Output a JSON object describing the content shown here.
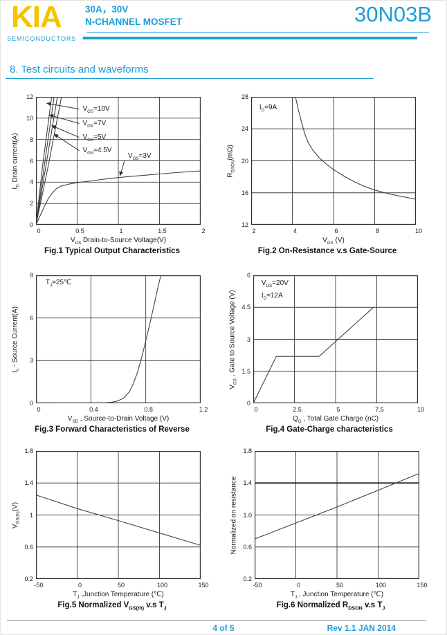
{
  "header": {
    "logo_text": "KIA",
    "logo_sub": "SEMICONDUCTORS",
    "part_line1": "30A，30V",
    "part_line2": "N-CHANNEL MOSFET",
    "part_number": "30N03B"
  },
  "section_title": "8. Test circuits and waveforms",
  "footer": {
    "page_indicator": "4 of 5",
    "revision": "Rev 1.1 JAN 2014"
  },
  "colors": {
    "accent": "#1b9ed6",
    "logo_yellow": "#f5c400",
    "curve": "#404040",
    "grid": "#3c3c3c"
  },
  "chart_data": [
    {
      "id": "fig1",
      "type": "line",
      "caption": "Fig.1 Typical Output Characteristics",
      "xlabel": "V~DS~ Drain-to-Source Voltage(V)",
      "ylabel": "I~D~ Drain current(A)",
      "xlim": [
        0,
        2
      ],
      "ylim": [
        0,
        12
      ],
      "grid": true,
      "xticks": [
        0,
        0.5,
        1,
        1.5,
        2
      ],
      "xtick_labels": [
        "0",
        "0.5",
        "1",
        "1.5",
        "2"
      ],
      "yticks": [
        0,
        2,
        4,
        6,
        8,
        10,
        12
      ],
      "ytick_labels": [
        "0",
        "2",
        "4",
        "6",
        "8",
        "10",
        "12"
      ],
      "series": [
        {
          "name": "V~GS~=10V",
          "points": [
            [
              0,
              0
            ],
            [
              0.08,
              5.5
            ],
            [
              0.19,
              12
            ]
          ]
        },
        {
          "name": "V~GS~=7V",
          "points": [
            [
              0,
              0
            ],
            [
              0.1,
              5.5
            ],
            [
              0.22,
              12
            ]
          ]
        },
        {
          "name": "V~GS~=5V",
          "points": [
            [
              0,
              0
            ],
            [
              0.12,
              5.5
            ],
            [
              0.26,
              12
            ]
          ]
        },
        {
          "name": "V~GS~=4.5V",
          "points": [
            [
              0,
              0
            ],
            [
              0.14,
              5.2
            ],
            [
              0.31,
              12
            ]
          ]
        },
        {
          "name": "V~GS~=3V",
          "points": [
            [
              0,
              0
            ],
            [
              0.05,
              0.85
            ],
            [
              0.1,
              1.7
            ],
            [
              0.15,
              2.45
            ],
            [
              0.2,
              3
            ],
            [
              0.25,
              3.4
            ],
            [
              0.3,
              3.62
            ],
            [
              0.4,
              3.82
            ],
            [
              0.5,
              3.95
            ],
            [
              0.7,
              4.15
            ],
            [
              0.9,
              4.35
            ],
            [
              1.1,
              4.5
            ],
            [
              1.3,
              4.63
            ],
            [
              1.5,
              4.77
            ],
            [
              1.7,
              4.9
            ],
            [
              2,
              5.05
            ]
          ]
        }
      ],
      "callouts": [
        {
          "text": "V~GS~=10V",
          "tx": 0.55,
          "ty": 10.85,
          "px": 0.13,
          "py": 11.4
        },
        {
          "text": "V~GS~=7V",
          "tx": 0.55,
          "ty": 9.5,
          "px": 0.16,
          "py": 10.3
        },
        {
          "text": "V~GS~=5V",
          "tx": 0.55,
          "ty": 8.2,
          "px": 0.19,
          "py": 9.3
        },
        {
          "text": "V~GS~=4.5V",
          "tx": 0.55,
          "ty": 6.95,
          "px": 0.22,
          "py": 8.5
        },
        {
          "text": "V~GS~=3V",
          "tx": 1.1,
          "ty": 6.4,
          "px": 1.02,
          "py": 4.6
        }
      ],
      "annotations": []
    },
    {
      "id": "fig2",
      "type": "line",
      "caption": "Fig.2 On-Resistance v.s Gate-Source",
      "xlabel": "V~GS~ (V)",
      "ylabel": "R~DSON~(mΩ)",
      "xlim": [
        2,
        10
      ],
      "ylim": [
        12,
        28
      ],
      "grid": true,
      "xticks": [
        2,
        4,
        6,
        8,
        10
      ],
      "xtick_labels": [
        "2",
        "4",
        "6",
        "8",
        "10"
      ],
      "yticks": [
        12,
        16,
        20,
        24,
        28
      ],
      "ytick_labels": [
        "12",
        "16",
        "20",
        "24",
        "28"
      ],
      "series": [
        {
          "name": "R~DSON~",
          "points": [
            [
              4.15,
              28
            ],
            [
              4.3,
              26.3
            ],
            [
              4.45,
              24.8
            ],
            [
              4.6,
              23.4
            ],
            [
              4.75,
              22.4
            ],
            [
              5,
              21.3
            ],
            [
              5.3,
              20.4
            ],
            [
              5.6,
              19.7
            ],
            [
              6,
              18.9
            ],
            [
              6.5,
              18.1
            ],
            [
              7,
              17.4
            ],
            [
              7.5,
              16.8
            ],
            [
              8,
              16.35
            ],
            [
              8.5,
              16
            ],
            [
              9,
              15.7
            ],
            [
              9.5,
              15.45
            ],
            [
              10,
              15.2
            ]
          ]
        }
      ],
      "callouts": [],
      "annotations": [
        {
          "text": "I~D~=9A",
          "x": 2.4,
          "y": 27.1
        }
      ]
    },
    {
      "id": "fig3",
      "type": "line",
      "caption": "Fig.3 Forward Characteristics of Reverse",
      "xlabel": "V~SD~ , Source-to-Drain Voltage (V)",
      "ylabel": "I~s~ - Source Current(A)",
      "xlim": [
        0,
        1.2
      ],
      "ylim": [
        0,
        9
      ],
      "grid": true,
      "xticks": [
        0,
        0.4,
        0.8,
        1.2
      ],
      "xtick_labels": [
        "0",
        "0.4",
        "0.8",
        "1.2"
      ],
      "yticks": [
        0,
        3,
        6,
        9
      ],
      "ytick_labels": [
        "0",
        "3",
        "6",
        "9"
      ],
      "series": [
        {
          "name": "I~s~",
          "points": [
            [
              0,
              0
            ],
            [
              0.5,
              0.02
            ],
            [
              0.55,
              0.07
            ],
            [
              0.6,
              0.18
            ],
            [
              0.64,
              0.38
            ],
            [
              0.68,
              0.8
            ],
            [
              0.71,
              1.4
            ],
            [
              0.74,
              2.2
            ],
            [
              0.77,
              3.2
            ],
            [
              0.8,
              4.4
            ],
            [
              0.83,
              5.6
            ],
            [
              0.86,
              6.9
            ],
            [
              0.89,
              8.2
            ],
            [
              0.91,
              9
            ]
          ]
        }
      ],
      "callouts": [],
      "annotations": [
        {
          "text": "T~J~=25℃",
          "x": 0.07,
          "y": 8.75
        }
      ]
    },
    {
      "id": "fig4",
      "type": "line",
      "caption": "Fig.4 Gate-Charge characteristics",
      "xlabel": "Q~G~ , Total Gate Charge (nC)",
      "ylabel": "V~GS~ , Gate to Source Voltage (V)",
      "xlim": [
        0,
        10
      ],
      "ylim": [
        0,
        6
      ],
      "grid": true,
      "xticks": [
        0,
        2.5,
        5,
        7.5,
        10
      ],
      "xtick_labels": [
        "0",
        "2.5",
        "5",
        "7.5",
        "10"
      ],
      "yticks": [
        0,
        1.5,
        3,
        4.5,
        6
      ],
      "ytick_labels": [
        "0",
        "1.5",
        "3",
        "4.5",
        "6"
      ],
      "series": [
        {
          "name": "V~GS~",
          "points": [
            [
              0,
              0
            ],
            [
              1.4,
              2.2
            ],
            [
              4,
              2.2
            ],
            [
              7.3,
              4.5
            ]
          ]
        }
      ],
      "callouts": [],
      "annotations": [
        {
          "text": "V~DS~=20V",
          "x": 0.5,
          "y": 5.82
        },
        {
          "text": "I~D~=12A",
          "x": 0.5,
          "y": 5.22
        }
      ]
    },
    {
      "id": "fig5",
      "type": "line",
      "caption": "Fig.5 Normalized V~GS(th)~ v.s T~J~",
      "xlabel": "T~J~ ,Junction Temperature (℃)",
      "ylabel": "V~GS(th)~(V)",
      "xlim": [
        -50,
        150
      ],
      "ylim": [
        0.2,
        1.8
      ],
      "grid": true,
      "xticks": [
        -50,
        0,
        50,
        100,
        150
      ],
      "xtick_labels": [
        "-50",
        "0",
        "50",
        "100",
        "150"
      ],
      "yticks": [
        0.2,
        0.6,
        1,
        1.4,
        1.8
      ],
      "ytick_labels": [
        "0.2",
        "0.6",
        "1",
        "1.4",
        "1.8"
      ],
      "series": [
        {
          "name": "V~GS(th)~",
          "points": [
            [
              -50,
              1.25
            ],
            [
              0,
              1.08
            ],
            [
              50,
              0.93
            ],
            [
              100,
              0.775
            ],
            [
              150,
              0.62
            ]
          ]
        }
      ],
      "callouts": [],
      "annotations": []
    },
    {
      "id": "fig6",
      "type": "line",
      "caption": "Fig.6 Normalized R~DSON~ v.s T~J~",
      "xlabel": "T~J~ , Junction Temperature (℃)",
      "ylabel": "Normalized on resistance",
      "xlim": [
        -50,
        150
      ],
      "ylim": [
        0.2,
        1.8
      ],
      "grid": true,
      "strong_hgrid": [
        1.4
      ],
      "xticks": [
        -50,
        0,
        50,
        100,
        150
      ],
      "xtick_labels": [
        "-50",
        "0",
        "50",
        "100",
        "150"
      ],
      "yticks": [
        0.2,
        0.6,
        1,
        1.4,
        1.8
      ],
      "ytick_labels": [
        "0.2",
        "0.6",
        "1.0",
        "1.4",
        "1.8"
      ],
      "series": [
        {
          "name": "R~DSON~ normalized",
          "points": [
            [
              -50,
              0.7
            ],
            [
              0,
              0.9
            ],
            [
              50,
              1.1
            ],
            [
              100,
              1.31
            ],
            [
              150,
              1.52
            ]
          ]
        }
      ],
      "callouts": [],
      "annotations": []
    }
  ]
}
